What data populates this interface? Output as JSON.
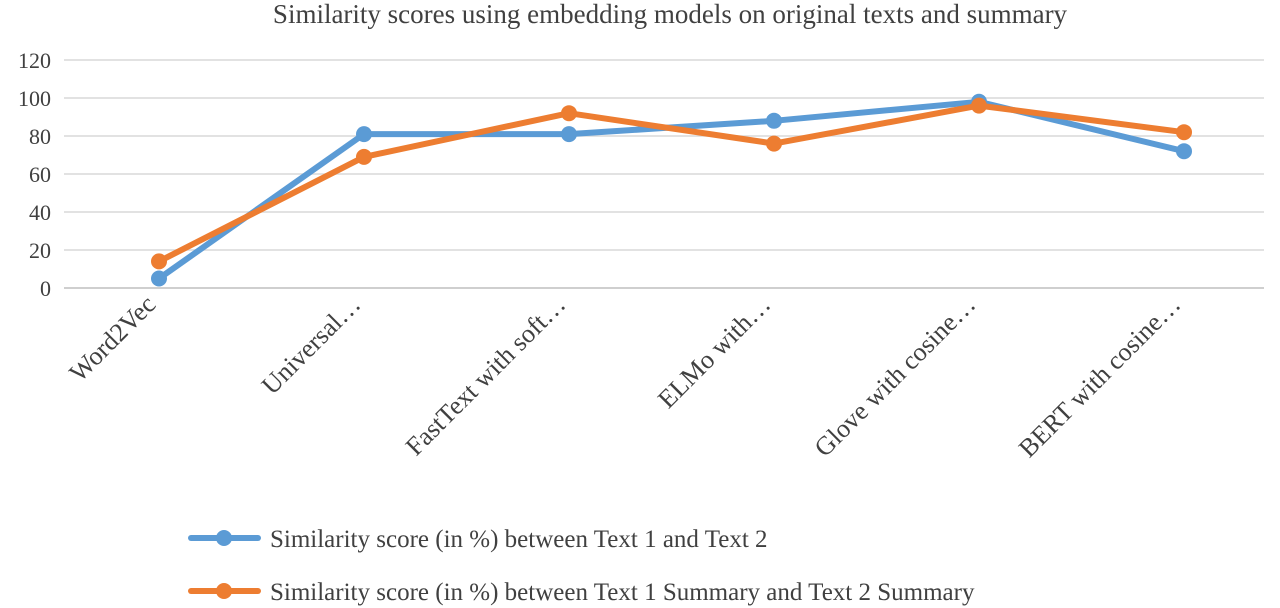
{
  "chart_data": {
    "type": "line",
    "title": "Similarity  scores using embedding models on original texts and summary",
    "categories": [
      "Word2Vec",
      "Universal…",
      "FastText with soft…",
      "ELMo with…",
      "Glove with cosine…",
      "BERT with cosine…"
    ],
    "series": [
      {
        "name": "Similarity score (in %) between  Text 1 and Text 2",
        "color": "#5b9bd5",
        "values": [
          5,
          81,
          81,
          88,
          98,
          72
        ]
      },
      {
        "name": "Similarity score (in %) between Text 1 Summary and Text 2 Summary",
        "color": "#ed7d31",
        "values": [
          14,
          69,
          92,
          76,
          96,
          82
        ]
      }
    ],
    "ylim": [
      0,
      120
    ],
    "yticks": [
      0,
      20,
      40,
      60,
      80,
      100,
      120
    ],
    "xlabel": "",
    "ylabel": "",
    "grid": true,
    "legend_position": "bottom"
  }
}
